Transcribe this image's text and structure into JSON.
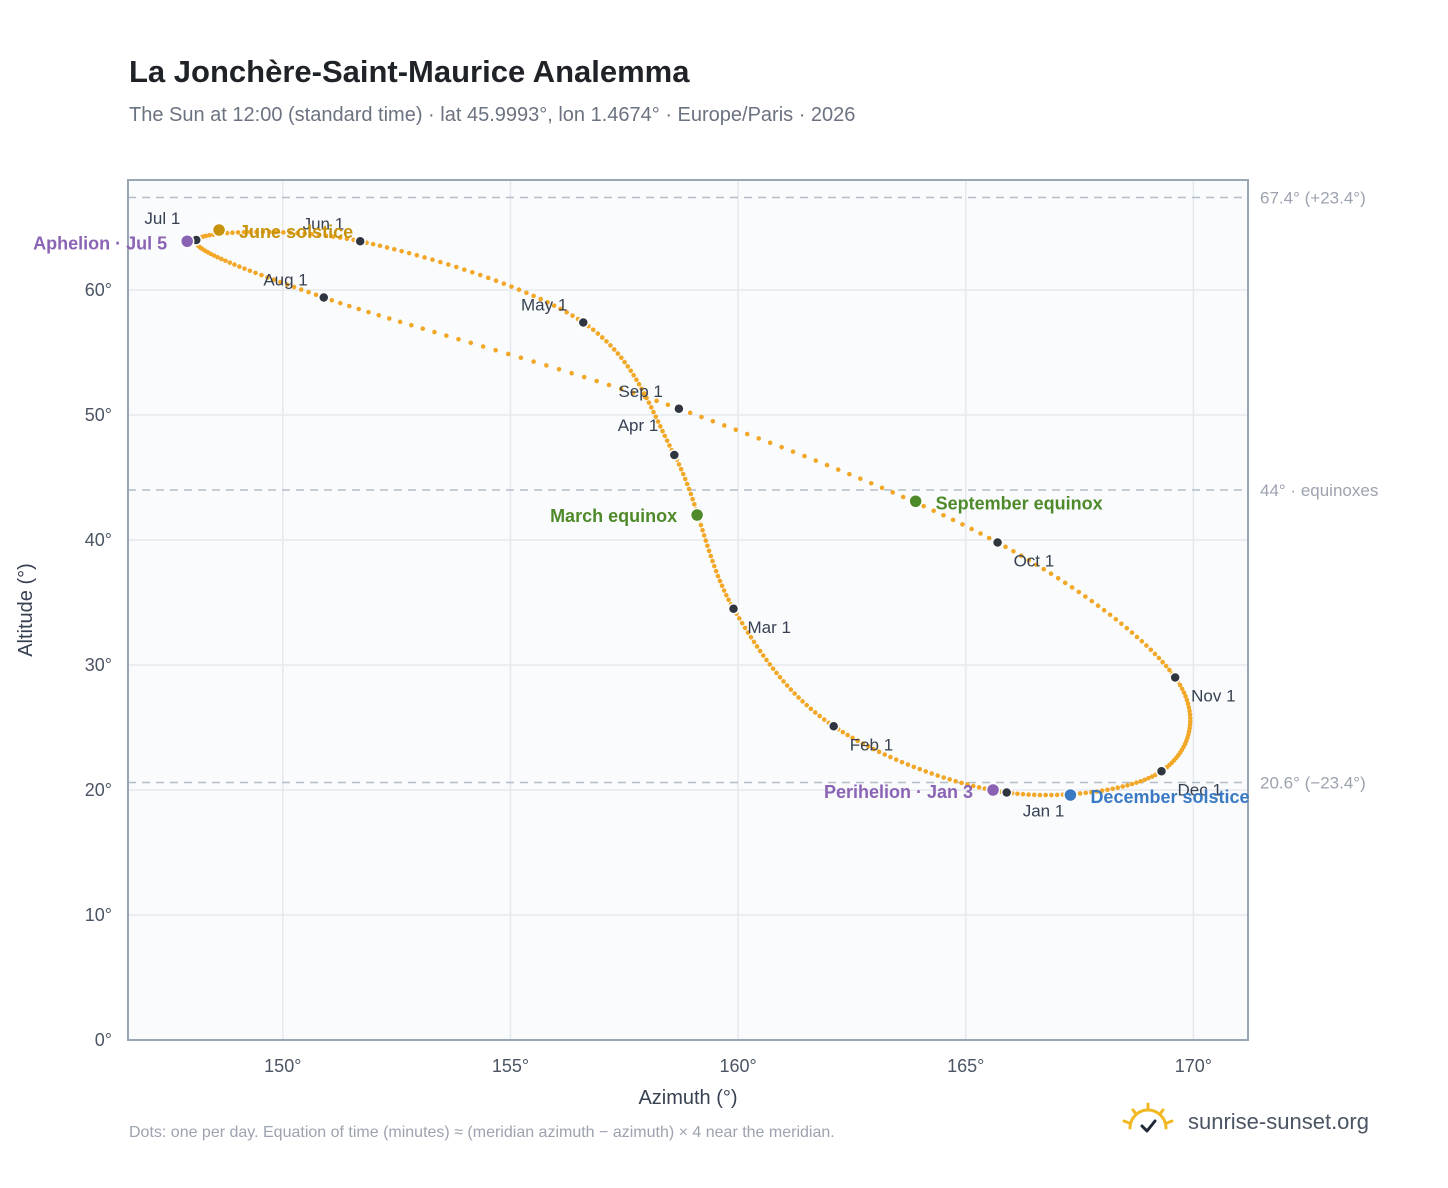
{
  "header": {
    "title": "La Jonchère-Saint-Maurice Analemma",
    "subtitle": "The Sun at 12:00 (standard time) · lat 45.9993°, lon 1.4674° · Europe/Paris · 2026"
  },
  "footer": {
    "note": "Dots: one per day. Equation of time (minutes) ≈ (meridian azimuth − azimuth) × 4 near the meridian.",
    "brand": "sunrise-sunset.org",
    "brand_icon": "sun-check-icon"
  },
  "colors": {
    "curve": "#f2a726",
    "month_marker": "#2f3640",
    "aphelion": "#8b63b4",
    "june_solstice": "#c8930c",
    "march_equinox": "#4f8a2a",
    "september_equinox": "#4f8a2a",
    "december_solstice": "#3a7ac4",
    "perihelion": "#8b63b4",
    "plot_bg": "#f9fbfd",
    "grid": "#e5e9ee",
    "frame": "#9aa6b4",
    "ref_line": "#b3bdc8"
  },
  "chart_data": {
    "type": "scatter",
    "xlabel": "Azimuth (°)",
    "ylabel": "Altitude (°)",
    "xlim": [
      146.6,
      171.2
    ],
    "ylim": [
      0,
      68.8
    ],
    "xticks": [
      150,
      155,
      160,
      165,
      170
    ],
    "xtick_labels": [
      "150°",
      "155°",
      "160°",
      "165°",
      "170°"
    ],
    "yticks": [
      0,
      10,
      20,
      30,
      40,
      50,
      60
    ],
    "ytick_labels": [
      "0°",
      "10°",
      "20°",
      "30°",
      "40°",
      "50°",
      "60°"
    ],
    "grid": true,
    "reference_lines": [
      {
        "y": 67.4,
        "label": "67.4° (+23.4°)"
      },
      {
        "y": 44.0,
        "label": "44° · equinoxes"
      },
      {
        "y": 20.6,
        "label": "20.6° (−23.4°)"
      }
    ],
    "daily_points": "one per day",
    "months": [
      {
        "label": "Jan 1",
        "az": 165.9,
        "alt": 19.8
      },
      {
        "label": "Feb 1",
        "az": 162.1,
        "alt": 25.1
      },
      {
        "label": "Mar 1",
        "az": 159.9,
        "alt": 34.5
      },
      {
        "label": "Apr 1",
        "az": 158.6,
        "alt": 46.8
      },
      {
        "label": "May 1",
        "az": 156.6,
        "alt": 57.4
      },
      {
        "label": "Jun 1",
        "az": 151.7,
        "alt": 63.9
      },
      {
        "label": "Jul 1",
        "az": 148.1,
        "alt": 64.0
      },
      {
        "label": "Aug 1",
        "az": 150.9,
        "alt": 59.4
      },
      {
        "label": "Sep 1",
        "az": 158.7,
        "alt": 50.5
      },
      {
        "label": "Oct 1",
        "az": 165.7,
        "alt": 39.8
      },
      {
        "label": "Nov 1",
        "az": 169.6,
        "alt": 29.0
      },
      {
        "label": "Dec 1",
        "az": 169.3,
        "alt": 21.5
      }
    ],
    "annotations": [
      {
        "label": "Perihelion · Jan 3",
        "az": 165.6,
        "alt": 20.0,
        "color": "#8b63b4"
      },
      {
        "label": "March equinox",
        "az": 159.1,
        "alt": 42.0,
        "color": "#4f8a2a"
      },
      {
        "label": "June solstice",
        "az": 148.6,
        "alt": 64.8,
        "color": "#c8930c"
      },
      {
        "label": "Aphelion · Jul 5",
        "az": 147.9,
        "alt": 63.9,
        "color": "#8b63b4"
      },
      {
        "label": "September equinox",
        "az": 163.9,
        "alt": 43.1,
        "color": "#4f8a2a"
      },
      {
        "label": "December solstice",
        "az": 167.3,
        "alt": 19.6,
        "color": "#3a7ac4"
      }
    ]
  }
}
